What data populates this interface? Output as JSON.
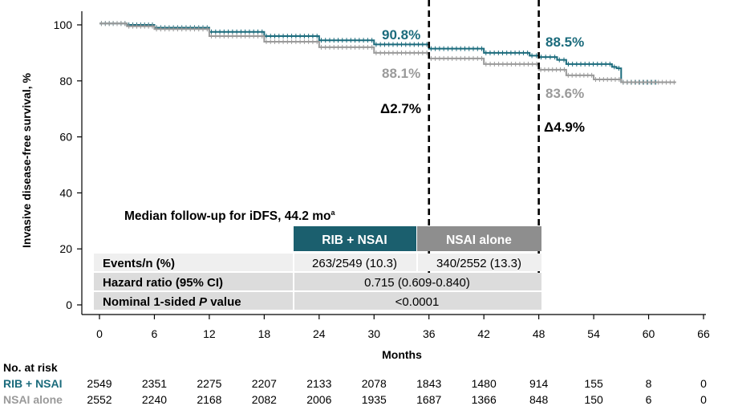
{
  "chart_data": {
    "type": "line",
    "ylabel": "Invasive disease-free survival, %",
    "xlabel": "Months",
    "xlim": [
      0,
      66
    ],
    "ylim": [
      0,
      100
    ],
    "x_ticks": [
      "0",
      "6",
      "12",
      "18",
      "24",
      "30",
      "36",
      "42",
      "48",
      "54",
      "60",
      "66"
    ],
    "y_ticks": [
      "0",
      "20",
      "40",
      "60",
      "80",
      "100"
    ],
    "series": [
      {
        "name": "RIB + NSAI",
        "color": "#1b6b7c",
        "x": [
          0,
          3,
          6,
          12,
          18,
          24,
          30,
          36,
          42,
          47,
          48,
          50,
          51,
          56,
          56.5,
          57,
          61
        ],
        "y": [
          100.5,
          100,
          99,
          97.5,
          96,
          94.5,
          93,
          91.5,
          90,
          89,
          88.5,
          87.5,
          86,
          85,
          84.5,
          79.5,
          79.5
        ]
      },
      {
        "name": "NSAI alone",
        "color": "#9a9a9a",
        "x": [
          0,
          3,
          6,
          12,
          18,
          24,
          30,
          36,
          42,
          48,
          51,
          54,
          57,
          60,
          63
        ],
        "y": [
          100.5,
          99.5,
          98.5,
          96,
          94,
          92,
          90,
          88,
          86,
          84,
          82,
          80.5,
          79.5,
          79.5,
          79.5
        ]
      }
    ],
    "annotations": {
      "rib_36": "90.8%",
      "nsai_36": "88.1%",
      "delta_36": "Δ2.7%",
      "rib_48": "88.5%",
      "nsai_48": "83.6%",
      "delta_48": "Δ4.9%"
    },
    "reference_lines_x": [
      36,
      48
    ]
  },
  "followup": {
    "label": "Median follow-up for iDFS, 44.2 mo",
    "superscript": "a"
  },
  "summary_table": {
    "headers": [
      "RIB + NSAI",
      "NSAI alone"
    ],
    "rows": [
      {
        "label": "Events/n (%)",
        "rib": "263/2549 (10.3)",
        "nsai": "340/2552 (13.3)"
      },
      {
        "label": "Hazard ratio (95% CI)",
        "combined": "0.715 (0.609-0.840)"
      },
      {
        "label_pre": "Nominal 1-sided ",
        "label_em": "P",
        "label_post": " value",
        "combined": "<0.0001"
      }
    ]
  },
  "risk_table": {
    "title": "No. at risk",
    "rows": [
      {
        "label": "RIB + NSAI",
        "values": [
          "2549",
          "2351",
          "2275",
          "2207",
          "2133",
          "2078",
          "1843",
          "1480",
          "914",
          "155",
          "8",
          "0"
        ]
      },
      {
        "label": "NSAI alone",
        "values": [
          "2552",
          "2240",
          "2168",
          "2082",
          "2006",
          "1935",
          "1687",
          "1366",
          "848",
          "150",
          "6",
          "0"
        ]
      }
    ]
  },
  "colors": {
    "rib": "#1b6b7c",
    "nsai": "#9a9a9a",
    "header_rib": "#1b5f6e",
    "header_nsai": "#8e8e8e",
    "row_light": "#efefef",
    "row_dark": "#dcdcdc"
  }
}
